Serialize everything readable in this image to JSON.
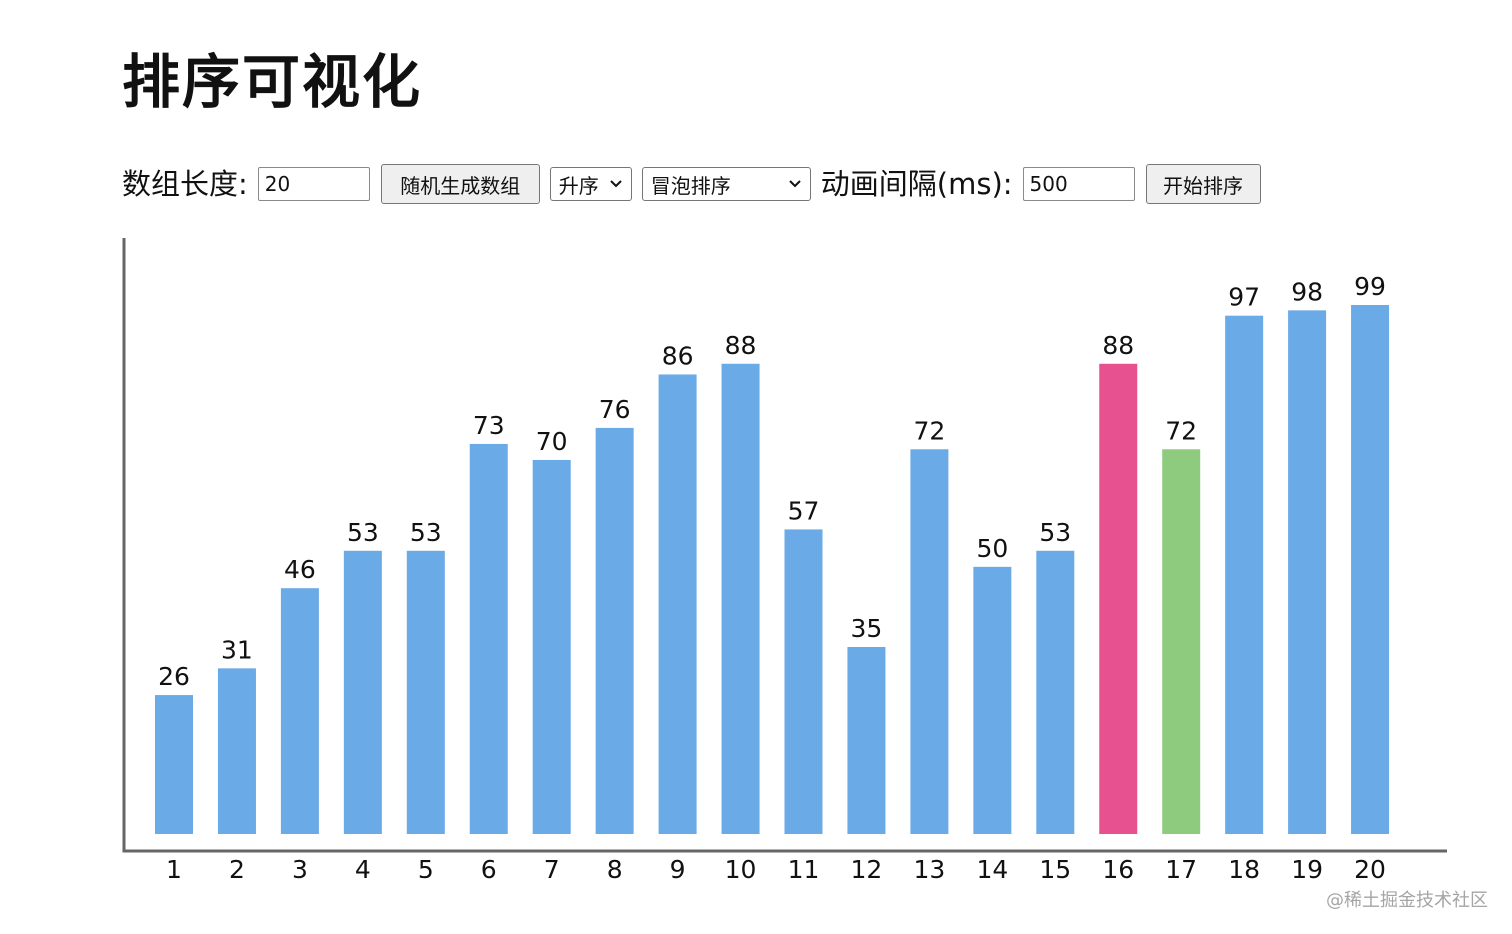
{
  "page_title": "排序可视化",
  "controls": {
    "length_label": "数组长度:",
    "length_value": "20",
    "random_button": "随机生成数组",
    "order_select": "升序",
    "algorithm_select": "冒泡排序",
    "interval_label": "动画间隔(ms):",
    "interval_value": "500",
    "start_button": "开始排序"
  },
  "colors": {
    "bar_default": "#6aaae6",
    "bar_comparing": "#e8518f",
    "bar_swapping": "#8fcb7f",
    "axis": "#666666"
  },
  "chart_data": {
    "type": "bar",
    "categories": [
      "1",
      "2",
      "3",
      "4",
      "5",
      "6",
      "7",
      "8",
      "9",
      "10",
      "11",
      "12",
      "13",
      "14",
      "15",
      "16",
      "17",
      "18",
      "19",
      "20"
    ],
    "values": [
      26,
      31,
      46,
      53,
      53,
      73,
      70,
      76,
      86,
      88,
      57,
      35,
      72,
      50,
      53,
      88,
      72,
      97,
      98,
      99
    ],
    "highlight": {
      "16": "bar_comparing",
      "17": "bar_swapping"
    },
    "ylim": [
      0,
      110
    ],
    "grid": false,
    "data_labels": true
  },
  "watermark": "@稀土掘金技术社区"
}
